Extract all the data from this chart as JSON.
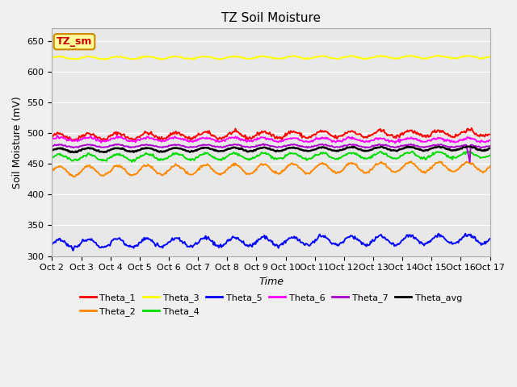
{
  "title": "TZ Soil Moisture",
  "xlabel": "Time",
  "ylabel": "Soil Moisture (mV)",
  "xlim": [
    0,
    15
  ],
  "ylim": [
    300,
    670
  ],
  "yticks": [
    300,
    350,
    400,
    450,
    500,
    550,
    600,
    650
  ],
  "xtick_labels": [
    "Oct 2",
    "Oct 3",
    "Oct 4",
    "Oct 5",
    "Oct 6",
    "Oct 7",
    "Oct 8",
    "Oct 9",
    "Oct 10",
    "Oct 11",
    "Oct 12",
    "Oct 13",
    "Oct 14",
    "Oct 15",
    "Oct 16",
    "Oct 17"
  ],
  "n_points": 500,
  "freq": 1.0,
  "series_order": [
    "Theta_1",
    "Theta_2",
    "Theta_3",
    "Theta_4",
    "Theta_5",
    "Theta_6",
    "Theta_7",
    "Theta_avg"
  ],
  "series": {
    "Theta_1": {
      "color": "#ff0000",
      "base": 494,
      "amplitude": 5,
      "trend": 0.4,
      "noise": 1.5
    },
    "Theta_2": {
      "color": "#ff8800",
      "base": 438,
      "amplitude": 8,
      "trend": 0.5,
      "noise": 1.0
    },
    "Theta_3": {
      "color": "#ffff00",
      "base": 622,
      "amplitude": 2,
      "trend": 0.1,
      "noise": 0.5
    },
    "Theta_4": {
      "color": "#00dd00",
      "base": 460,
      "amplitude": 5,
      "trend": 0.3,
      "noise": 1.0
    },
    "Theta_5": {
      "color": "#0000ff",
      "base": 320,
      "amplitude": 7,
      "trend": 0.5,
      "noise": 1.5
    },
    "Theta_6": {
      "color": "#ff00ff",
      "base": 490,
      "amplitude": 3,
      "trend": -0.1,
      "noise": 1.0
    },
    "Theta_7": {
      "color": "#aa00cc",
      "base": 479,
      "amplitude": 2,
      "trend": 0.0,
      "noise": 0.5
    },
    "Theta_avg": {
      "color": "#000000",
      "base": 472,
      "amplitude": 3,
      "trend": 0.2,
      "noise": 0.5
    }
  },
  "legend_label": "TZ_sm",
  "legend_box_color": "#ffff99",
  "legend_box_edge": "#cc8800",
  "legend_text_color": "#cc0000",
  "background_color": "#e8e8e8",
  "grid_color": "#ffffff",
  "fig_bg": "#f0f0f0"
}
